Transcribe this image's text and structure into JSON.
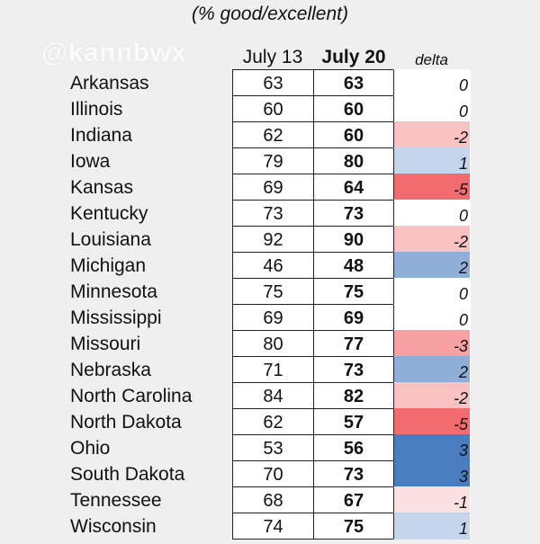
{
  "subtitle": "(% good/excellent)",
  "watermark": "@kannbwx",
  "chart_data": {
    "type": "table",
    "columns": [
      "July 13",
      "July 20",
      "delta"
    ],
    "rows": [
      {
        "state": "Arkansas",
        "july13": "63",
        "july20": "63",
        "delta": "0"
      },
      {
        "state": "Illinois",
        "july13": "60",
        "july20": "60",
        "delta": "0"
      },
      {
        "state": "Indiana",
        "july13": "62",
        "july20": "60",
        "delta": "-2"
      },
      {
        "state": "Iowa",
        "july13": "79",
        "july20": "80",
        "delta": "1"
      },
      {
        "state": "Kansas",
        "july13": "69",
        "july20": "64",
        "delta": "-5"
      },
      {
        "state": "Kentucky",
        "july13": "73",
        "july20": "73",
        "delta": "0"
      },
      {
        "state": "Louisiana",
        "july13": "92",
        "july20": "90",
        "delta": "-2"
      },
      {
        "state": "Michigan",
        "july13": "46",
        "july20": "48",
        "delta": "2"
      },
      {
        "state": "Minnesota",
        "july13": "75",
        "july20": "75",
        "delta": "0"
      },
      {
        "state": "Mississippi",
        "july13": "69",
        "july20": "69",
        "delta": "0"
      },
      {
        "state": "Missouri",
        "july13": "80",
        "july20": "77",
        "delta": "-3"
      },
      {
        "state": "Nebraska",
        "july13": "71",
        "july20": "73",
        "delta": "2"
      },
      {
        "state": "North Carolina",
        "july13": "84",
        "july20": "82",
        "delta": "-2"
      },
      {
        "state": "North Dakota",
        "july13": "62",
        "july20": "57",
        "delta": "-5"
      },
      {
        "state": "Ohio",
        "july13": "53",
        "july20": "56",
        "delta": "3"
      },
      {
        "state": "South Dakota",
        "july13": "70",
        "july20": "73",
        "delta": "3"
      },
      {
        "state": "Tennessee",
        "july13": "68",
        "july20": "67",
        "delta": "-1"
      },
      {
        "state": "Wisconsin",
        "july13": "74",
        "july20": "75",
        "delta": "1"
      }
    ],
    "delta_colors": {
      "-5": "#f26b6f",
      "-3": "#f6a0a3",
      "-2": "#f8c2c3",
      "-1": "#fbe0e1",
      "0": "#ffffff",
      "1": "#c5d6ec",
      "2": "#8faed8",
      "3": "#4a7cc0"
    }
  }
}
